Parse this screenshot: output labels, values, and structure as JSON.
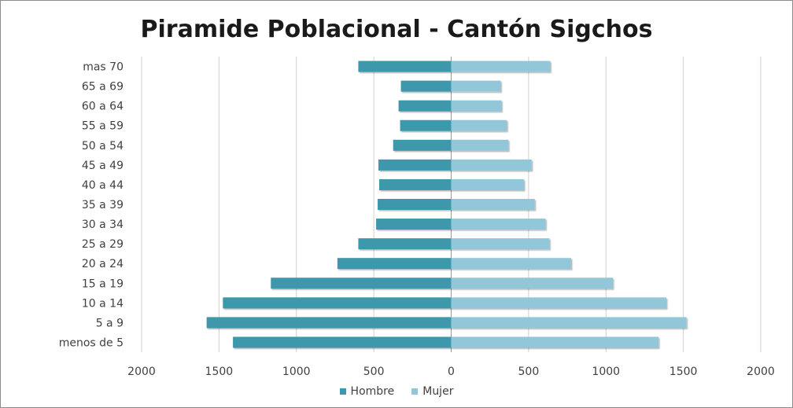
{
  "chart_data": {
    "type": "bar",
    "orientation": "horizontal-pyramid",
    "title": "Piramide Poblacional - Cantón Sigchos",
    "categories": [
      "menos de 5",
      "5 a 9",
      "10 a 14",
      "15 a 19",
      "20 a 24",
      "25 a 29",
      "30 a 34",
      "35 a 39",
      "40 a 44",
      "45 a 49",
      "50 a 54",
      "55 a 59",
      "60 a 64",
      "65 a 69",
      "mas 70"
    ],
    "series": [
      {
        "name": "Hombre",
        "color": "#3c98ab",
        "side": "left",
        "values": [
          1410,
          1580,
          1475,
          1165,
          735,
          600,
          485,
          475,
          465,
          470,
          375,
          330,
          340,
          325,
          600
        ]
      },
      {
        "name": "Mujer",
        "color": "#92c7d9",
        "side": "right",
        "values": [
          1340,
          1520,
          1390,
          1045,
          775,
          635,
          610,
          540,
          470,
          520,
          370,
          360,
          325,
          320,
          640
        ]
      }
    ],
    "xlim": [
      -2000,
      2000
    ],
    "x_ticks": [
      -2000,
      -1500,
      -1000,
      -500,
      0,
      500,
      1000,
      1500,
      2000
    ],
    "x_tick_labels": [
      "2000",
      "1500",
      "1000",
      "500",
      "0",
      "500",
      "1000",
      "1500",
      "2000"
    ],
    "grid": true,
    "legend_position": "bottom"
  }
}
